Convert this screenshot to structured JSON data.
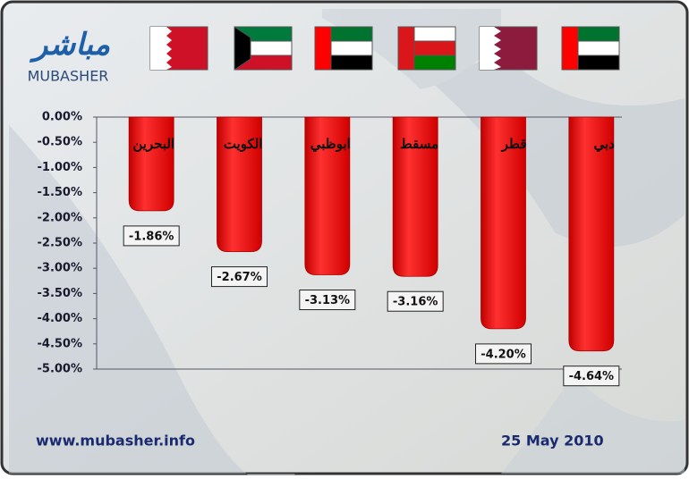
{
  "chart_data": {
    "type": "bar",
    "logo_arabic": "مباشر",
    "logo_latin": "MUBASHER",
    "website": "www.mubasher.info",
    "date": "25 May 2010",
    "categories": [
      "البحرين",
      "الكويت",
      "ابوظبي",
      "مسقط",
      "قطر",
      "دبي"
    ],
    "values": [
      -1.86,
      -2.67,
      -3.13,
      -3.16,
      -4.2,
      -4.64
    ],
    "value_labels": [
      "-1.86%",
      "-2.67%",
      "-3.13%",
      "-3.16%",
      "-4.20%",
      "-4.64%"
    ],
    "color": "#ee1111",
    "ylim": [
      -5,
      0
    ],
    "yticks": [
      {
        "value": 0,
        "label": "0.00%"
      },
      {
        "value": -0.5,
        "label": "-0.50%"
      },
      {
        "value": -1,
        "label": "-1.00%"
      },
      {
        "value": -1.5,
        "label": "-1.50%"
      },
      {
        "value": -2,
        "label": "-2.00%"
      },
      {
        "value": -2.5,
        "label": "-2.50%"
      },
      {
        "value": -3,
        "label": "-3.00%"
      },
      {
        "value": -3.5,
        "label": "-3.50%"
      },
      {
        "value": -4,
        "label": "-4.00%"
      },
      {
        "value": -4.5,
        "label": "-4.50%"
      },
      {
        "value": -5,
        "label": "-5.00%"
      }
    ],
    "grid": false
  }
}
